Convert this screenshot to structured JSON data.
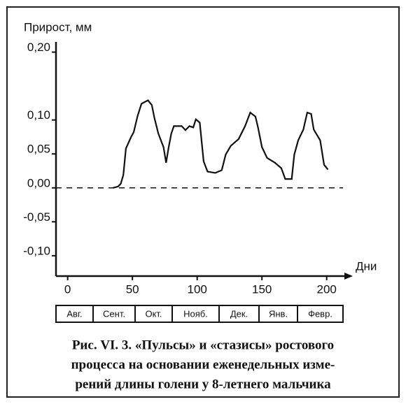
{
  "chart_data": {
    "type": "line",
    "y_label": "Прирост, мм",
    "x_label": "Дни",
    "x": [
      35,
      39,
      41,
      43,
      45,
      49,
      51,
      54,
      57,
      62,
      65,
      67,
      70,
      74,
      76,
      78,
      80,
      82,
      88,
      91,
      94,
      97,
      99,
      102,
      105,
      108,
      114,
      119,
      122,
      126,
      132,
      137,
      141,
      145,
      147,
      150,
      154,
      160,
      165,
      168,
      173,
      175,
      178,
      182,
      185,
      188,
      190,
      195,
      198,
      201
    ],
    "series": [
      {
        "color": "#111111",
        "values": [
          0,
          0.002,
          0.006,
          0.019,
          0.058,
          0.075,
          0.082,
          0.106,
          0.124,
          0.129,
          0.122,
          0.103,
          0.08,
          0.06,
          0.037,
          0.06,
          0.08,
          0.091,
          0.091,
          0.085,
          0.091,
          0.089,
          0.101,
          0.096,
          0.039,
          0.024,
          0.022,
          0.026,
          0.049,
          0.062,
          0.072,
          0.091,
          0.111,
          0.105,
          0.089,
          0.06,
          0.044,
          0.037,
          0.029,
          0.013,
          0.013,
          0.049,
          0.07,
          0.086,
          0.111,
          0.109,
          0.086,
          0.07,
          0.034,
          0.027
        ]
      }
    ],
    "xlim": [
      -9,
      218
    ],
    "xticks": [
      0,
      50,
      100,
      150,
      200
    ],
    "ylim": [
      -0.13,
      0.215
    ],
    "yticks": [
      {
        "value": 0.2,
        "label": "0,20"
      },
      {
        "value": 0.1,
        "label": "0,10"
      },
      {
        "value": 0.05,
        "label": "0,05"
      },
      {
        "value": 0,
        "label": "0,00"
      },
      {
        "value": -0.05,
        "label": "-0,05"
      },
      {
        "value": -0.1,
        "label": "-0,10"
      }
    ],
    "hline": 0,
    "months": [
      "Авг.",
      "Сент.",
      "Окт.",
      "Нояб.",
      "Дек.",
      "Янв.",
      "Февр."
    ],
    "caption": [
      "Рис. VI. 3. «Пульсы» и «стазисы» ростового",
      "процесса на основании еженедельных изме-",
      "рений длины голени у 8-летнего мальчика"
    ]
  }
}
